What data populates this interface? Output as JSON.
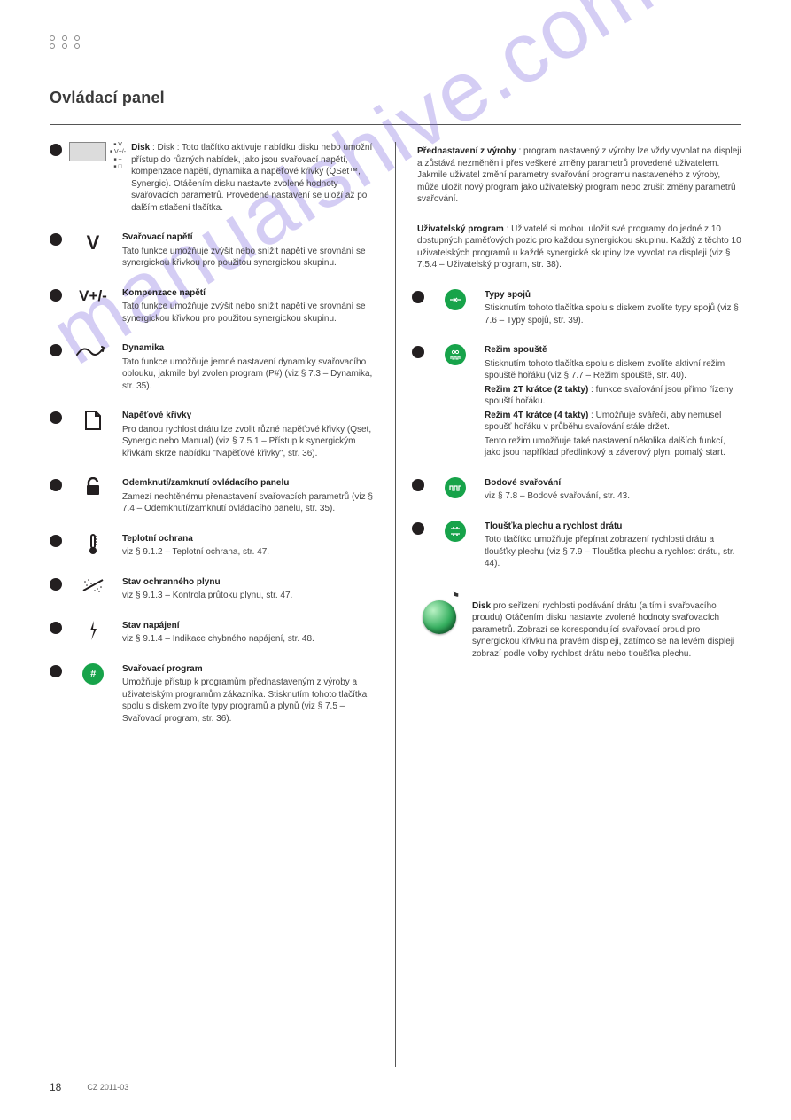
{
  "page_title": "Ovládací panel",
  "watermark": "manualshive.com",
  "footer": {
    "page": "18",
    "text": "CZ 2011-03"
  },
  "colors": {
    "bullet": "#231f20",
    "green_btn": "#17a34a",
    "rule": "#555555",
    "text": "#444444"
  },
  "left": [
    {
      "id": "menu",
      "icon_kind": "rect-mini",
      "mini_items": [
        "V",
        "V+/-",
        "~",
        "□"
      ],
      "body": "Disk : Toto tlačítko aktivuje nabídku disku nebo umožní přístup do různých nabídek, jako jsou svařovací napětí, kompenzace napětí, dynamika a napěťové křivky (QSet™, Synergic).\nOtáčením disku nastavte zvolené hodnoty svařovacích parametrů. Provedené nastavení se uloží až po dalším stlačení tlačítka."
    },
    {
      "id": "volt",
      "icon_kind": "glyph",
      "glyph": "V",
      "title": "Svařovací napětí",
      "body": "Tato funkce umožňuje zvýšit nebo snížit napětí ve srovnání se synergickou křivkou pro použitou synergickou skupinu."
    },
    {
      "id": "voltcomp",
      "icon_kind": "glyph",
      "glyph": "V+/-",
      "glyph_size": 17,
      "title": "Kompenzace napětí",
      "body": "Tato funkce umožňuje zvýšit nebo snížit napětí ve srovnání se synergickou křivkou pro použitou synergickou skupinu."
    },
    {
      "id": "dyn",
      "icon_kind": "svg-dyn",
      "title": "Dynamika",
      "body": "Tato funkce umožňuje jemné nastavení dynamiky svařovacího oblouku, jakmile byl zvolen program (P#) (viz § 7.3 – Dynamika, str. 35)."
    },
    {
      "id": "curve",
      "icon_kind": "svg-page",
      "title": "Napěťové křivky",
      "body": "Pro danou rychlost drátu lze zvolit různé napěťové křivky (Qset, Synergic nebo Manual) (viz § 7.5.1 – Přístup k synergickým křivkám skrze nabídku \"Napěťové křivky\", str. 36)."
    },
    {
      "id": "lock",
      "icon_kind": "svg-lock",
      "title": "Odemknutí/zamknutí ovládacího panelu",
      "body": "Zamezí nechtěnému přenastavení svařovacích parametrů (viz § 7.4 – Odemknutí/zamknutí ovládacího panelu, str. 35)."
    },
    {
      "id": "temp",
      "icon_kind": "svg-temp",
      "title": "Teplotní ochrana",
      "body": "viz § 9.1.2 – Teplotní ochrana, str. 47."
    },
    {
      "id": "gas",
      "icon_kind": "svg-gas",
      "title": "Stav ochranného plynu",
      "body": "viz § 9.1.3 – Kontrola průtoku plynu, str. 47."
    },
    {
      "id": "pwr",
      "icon_kind": "svg-bolt",
      "title": "Stav napájení",
      "body": "viz § 9.1.4 – Indikace chybného napájení, str. 48."
    },
    {
      "id": "prog",
      "icon_kind": "green-btn",
      "btn_label": "#",
      "title": "Svařovací program",
      "body": "Umožňuje přístup k programům přednastaveným z výroby a uživatelským programům zákazníka. Stisknutím tohoto tlačítka spolu s diskem zvolíte typy programů a plynů (viz § 7.5 – Svařovací program, str. 36)."
    }
  ],
  "right": [
    {
      "id": "factory",
      "body": "<b>Přednastavení z výroby</b> : program nastavený z výroby lze vždy vyvolat na displeji a zůstává nezměněn i přes veškeré změny parametrů provedené uživatelem. Jakmile uživatel změní parametry svařování programu nastaveného z výroby, může uložit nový program jako uživatelský program nebo zrušit změny parametrů svařování."
    },
    {
      "id": "user",
      "body": "<b>Uživatelský program</b> : Uživatelé si mohou uložit své programy do jedné z 10 dostupných paměťových pozic pro každou synergickou skupinu. Každý z těchto 10 uživatelských programů u každé synergické skupiny lze vyvolat na displeji (viz § 7.5.4 – Uživatelský program, str. 38)."
    },
    {
      "id": "joint",
      "icon_kind": "green-btn",
      "btn_svg": "joint",
      "title": "Typy spojů",
      "body": "Stisknutím tohoto tlačítka spolu s diskem zvolíte typy spojů (viz § 7.6 – Typy spojů, str. 39)."
    },
    {
      "id": "trigger",
      "icon_kind": "green-btn",
      "btn_svg": "trigger",
      "title": "Režim spouště",
      "body": "Stisknutím tohoto tlačítka spolu s diskem zvolíte aktivní režim spouště hořáku (viz § 7.7 – Režim spouště, str. 40).\n<b>Režim 2T krátce (2 takty)</b> : funkce svařování jsou přímo řízeny spouští hořáku.\n<b>Režim 4T krátce (4 takty)</b> : Umožňuje svářeči, aby nemusel spoušť hořáku v průběhu svařování stále držet.\nTento režim umožňuje také nastavení několika dalších funkcí, jako jsou například předlinkový a záverový plyn, pomalý start."
    },
    {
      "id": "spot",
      "icon_kind": "green-btn",
      "btn_svg": "spot",
      "title": "Bodové svařování",
      "body": "viz § 7.8 – Bodové svařování, str. 43."
    },
    {
      "id": "thick",
      "icon_kind": "green-btn",
      "btn_svg": "thick",
      "title": "Tloušťka plechu a rychlost drátu",
      "body": "Toto tlačítko umožňuje přepínat zobrazení rychlosti drátu a tloušťky plechu (viz § 7.9 – Tloušťka plechu a rychlost drátu, str. 44)."
    },
    {
      "id": "dial",
      "icon_kind": "knob",
      "title": "Disk",
      "body": "pro seřízení rychlosti podávání drátu (a tím i svařovacího proudu)\nOtáčením disku nastavte zvolené hodnoty svařovacích parametrů. Zobrazí se korespondující svařovací proud pro synergickou křivku na pravém displeji, zatímco se na levém displeji zobrazí podle volby rychlost drátu nebo tloušťka plechu."
    }
  ]
}
